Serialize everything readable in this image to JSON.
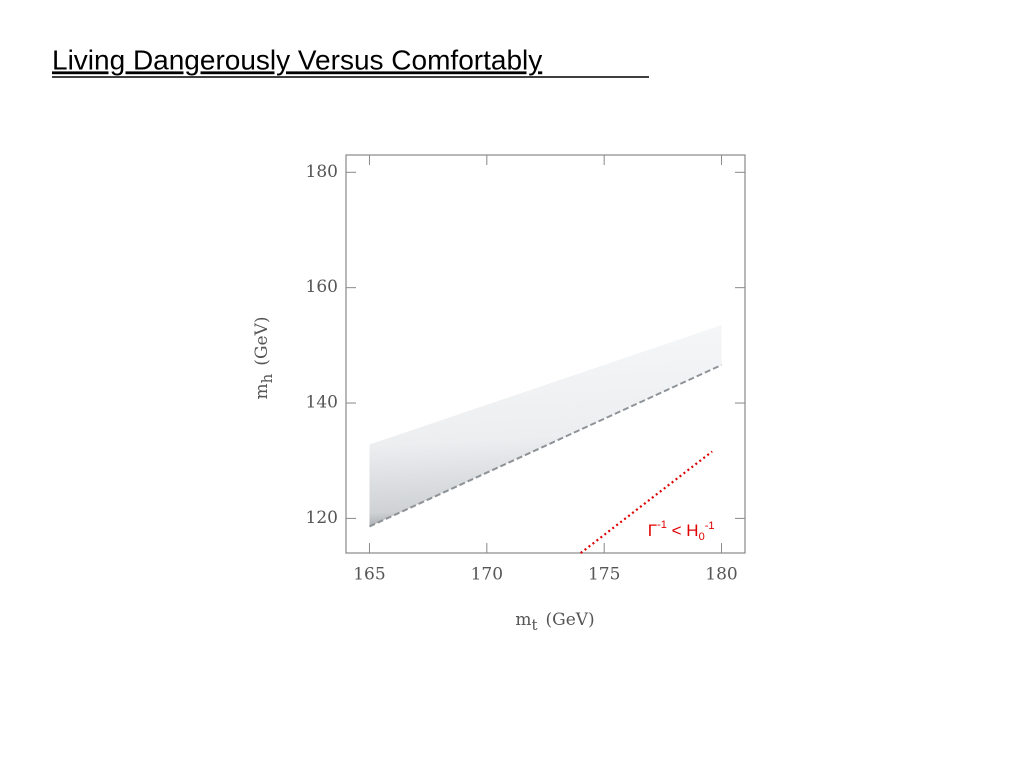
{
  "header": {
    "title": "Living Dangerously Versus Comfortably"
  },
  "chart_data": {
    "type": "band",
    "xlabel": {
      "main": "m",
      "sub": "t",
      "unit": "(GeV)"
    },
    "ylabel": {
      "main": "m",
      "sub": "h",
      "unit": "(GeV)"
    },
    "xlim": [
      164,
      181
    ],
    "ylim": [
      114,
      183
    ],
    "xticks": [
      165,
      170,
      175,
      180
    ],
    "yticks": [
      120,
      140,
      160,
      180
    ],
    "band": {
      "x": [
        165,
        180
      ],
      "lower": [
        118.6,
        146.6
      ],
      "upper": [
        132.8,
        153.5
      ],
      "color": "#8e9398"
    },
    "line": {
      "x": [
        174,
        179.6
      ],
      "y": [
        114,
        131.6
      ],
      "color": "#e00000"
    },
    "annotation": {
      "parts": [
        "Γ",
        "-1",
        " < H",
        "0",
        "-1"
      ],
      "x": 179.7,
      "y": 119,
      "color": "#e00000"
    }
  }
}
